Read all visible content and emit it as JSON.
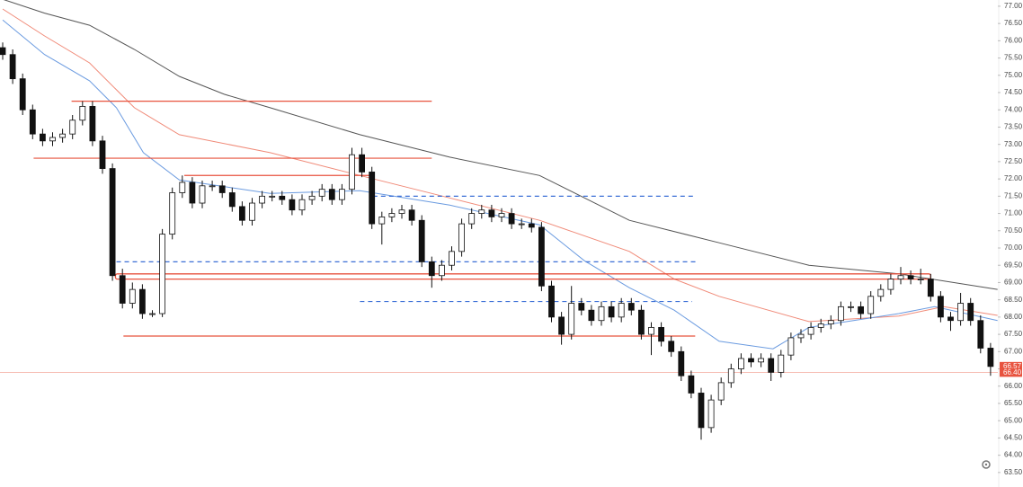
{
  "chart_data": {
    "type": "candlestick",
    "up_color": "#ffffff",
    "down_color": "#111111",
    "wick_color": "#111111",
    "ylim": [
      63.08,
      77.18
    ],
    "yticks": [
      {
        "value": 63.5,
        "label": "63.50"
      },
      {
        "value": 64,
        "label": "64.00"
      },
      {
        "value": 64.5,
        "label": "64.50"
      },
      {
        "value": 65,
        "label": "65.00"
      },
      {
        "value": 65.5,
        "label": "65.50"
      },
      {
        "value": 66,
        "label": "66.00"
      },
      {
        "value": 66.5,
        "label": "66.50"
      },
      {
        "value": 67,
        "label": "67.00"
      },
      {
        "value": 67.5,
        "label": "67.50"
      },
      {
        "value": 68,
        "label": "68.00"
      },
      {
        "value": 68.5,
        "label": "68.50"
      },
      {
        "value": 69,
        "label": "69.00"
      },
      {
        "value": 69.5,
        "label": "69.50"
      },
      {
        "value": 70,
        "label": "70.00"
      },
      {
        "value": 70.5,
        "label": "70.50"
      },
      {
        "value": 71,
        "label": "71.00"
      },
      {
        "value": 71.5,
        "label": "71.50"
      },
      {
        "value": 72,
        "label": "72.00"
      },
      {
        "value": 72.5,
        "label": "72.50"
      },
      {
        "value": 73,
        "label": "73.00"
      },
      {
        "value": 73.5,
        "label": "73.50"
      },
      {
        "value": 74,
        "label": "74.00"
      },
      {
        "value": 74.5,
        "label": "74.50"
      },
      {
        "value": 75,
        "label": "75.00"
      },
      {
        "value": 75.5,
        "label": "75.50"
      },
      {
        "value": 76,
        "label": "76.00"
      },
      {
        "value": 76.5,
        "label": "76.50"
      },
      {
        "value": 77,
        "label": "77.00"
      }
    ],
    "open": [
      75.8,
      75.6,
      74.9,
      74.0,
      73.3,
      73.1,
      73.2,
      73.3,
      73.7,
      74.1,
      73.1,
      72.3,
      69.2,
      68.4,
      68.8,
      68.1,
      68.1,
      70.4,
      71.6,
      71.9,
      71.3,
      71.8,
      71.8,
      71.6,
      71.2,
      70.8,
      71.3,
      71.5,
      71.5,
      71.4,
      71.1,
      71.4,
      71.5,
      71.7,
      71.4,
      71.7,
      72.7,
      72.2,
      70.7,
      70.9,
      71.0,
      71.1,
      70.8,
      69.6,
      69.2,
      69.5,
      69.9,
      70.7,
      71.0,
      71.1,
      70.9,
      71.0,
      70.7,
      70.7,
      70.6,
      68.9,
      68.0,
      67.5,
      68.4,
      68.2,
      67.9,
      68.3,
      68.0,
      68.4,
      68.2,
      67.5,
      67.7,
      67.3,
      67.0,
      66.3,
      65.8,
      64.8,
      65.6,
      66.1,
      66.5,
      66.8,
      66.7,
      66.8,
      66.4,
      66.9,
      67.4,
      67.5,
      67.7,
      67.8,
      67.9,
      68.3,
      68.3,
      68.1,
      68.6,
      68.8,
      69.1,
      69.2,
      69.1,
      69.1,
      68.6,
      68.0,
      67.9,
      68.4,
      67.9,
      67.1
    ],
    "high": [
      75.95,
      75.75,
      75.05,
      74.15,
      73.45,
      73.35,
      73.45,
      73.85,
      74.25,
      74.25,
      73.25,
      72.45,
      69.4,
      69.0,
      68.95,
      68.2,
      70.55,
      71.75,
      72.1,
      72.05,
      71.95,
      71.95,
      71.95,
      71.75,
      71.35,
      71.45,
      71.65,
      71.65,
      71.65,
      71.55,
      71.55,
      71.65,
      71.85,
      71.85,
      71.85,
      72.9,
      72.9,
      72.35,
      71.05,
      71.15,
      71.25,
      71.25,
      70.95,
      69.75,
      69.65,
      70.05,
      70.85,
      71.15,
      71.25,
      71.25,
      71.15,
      71.15,
      70.85,
      70.85,
      70.75,
      69.05,
      68.15,
      68.9,
      68.55,
      68.35,
      68.45,
      68.45,
      68.55,
      68.55,
      68.35,
      67.85,
      67.85,
      67.45,
      67.15,
      66.45,
      65.95,
      65.75,
      66.25,
      66.65,
      66.95,
      66.95,
      66.95,
      66.95,
      67.05,
      67.55,
      67.65,
      67.85,
      67.95,
      68.05,
      68.45,
      68.45,
      68.45,
      68.75,
      68.95,
      69.25,
      69.45,
      69.35,
      69.4,
      69.25,
      68.75,
      68.15,
      68.7,
      68.55,
      68.05,
      67.25
    ],
    "low": [
      75.45,
      74.75,
      73.85,
      73.15,
      72.95,
      72.95,
      73.05,
      73.15,
      73.55,
      72.95,
      72.15,
      69.05,
      68.25,
      68.25,
      67.95,
      68.0,
      68.0,
      70.25,
      71.45,
      71.15,
      71.15,
      71.65,
      71.45,
      71.05,
      70.65,
      70.65,
      71.15,
      71.35,
      71.25,
      70.95,
      70.95,
      71.25,
      71.35,
      71.25,
      71.25,
      71.55,
      72.05,
      70.55,
      70.1,
      70.75,
      70.85,
      70.65,
      69.45,
      68.85,
      69.05,
      69.35,
      69.75,
      70.55,
      70.85,
      70.75,
      70.75,
      70.55,
      70.55,
      70.45,
      68.75,
      67.85,
      67.2,
      67.35,
      68.05,
      67.75,
      67.75,
      67.85,
      67.85,
      68.05,
      67.35,
      66.9,
      67.15,
      66.85,
      66.15,
      65.65,
      64.45,
      64.65,
      65.45,
      65.95,
      66.35,
      66.55,
      66.55,
      66.15,
      66.25,
      66.75,
      67.25,
      67.35,
      67.55,
      67.65,
      67.75,
      68.15,
      67.95,
      67.95,
      68.45,
      68.65,
      68.95,
      68.95,
      68.95,
      68.45,
      67.85,
      67.6,
      67.75,
      67.75,
      66.95,
      66.3
    ],
    "close": [
      75.6,
      74.9,
      74.0,
      73.3,
      73.1,
      73.2,
      73.3,
      73.7,
      74.1,
      73.1,
      72.3,
      69.2,
      68.4,
      68.8,
      68.1,
      68.1,
      70.4,
      71.6,
      71.9,
      71.3,
      71.8,
      71.8,
      71.6,
      71.2,
      70.8,
      71.3,
      71.5,
      71.5,
      71.4,
      71.1,
      71.4,
      71.5,
      71.7,
      71.4,
      71.7,
      72.7,
      72.2,
      70.7,
      70.9,
      71.0,
      71.1,
      70.8,
      69.6,
      69.2,
      69.5,
      69.9,
      70.7,
      71.0,
      71.1,
      70.9,
      71.0,
      70.7,
      70.7,
      70.6,
      68.9,
      68.0,
      67.5,
      68.4,
      68.2,
      67.9,
      68.3,
      68.0,
      68.4,
      68.2,
      67.5,
      67.7,
      67.3,
      67.0,
      66.3,
      65.8,
      64.8,
      65.6,
      66.1,
      66.5,
      66.8,
      66.7,
      66.8,
      66.4,
      66.9,
      67.4,
      67.5,
      67.7,
      67.8,
      67.9,
      68.3,
      68.3,
      68.1,
      68.6,
      68.8,
      69.1,
      69.2,
      69.1,
      69.1,
      68.6,
      68.0,
      67.9,
      68.4,
      67.9,
      67.1,
      66.57
    ],
    "lines": [
      {
        "color": "#555555",
        "x": [
          0,
          4.2,
          8.7,
          13.2,
          17.7,
          22.2,
          26.8,
          35.8,
          44.8,
          53.8,
          62.8,
          71.8,
          80.8,
          89.8,
          99.7
        ],
        "values": [
          77.2,
          76.8,
          76.45,
          75.75,
          74.97,
          74.45,
          74.06,
          73.28,
          72.63,
          72.1,
          70.8,
          70.15,
          69.5,
          69.25,
          68.8
        ]
      },
      {
        "color": "#f08a78",
        "x": [
          0,
          4.2,
          8.7,
          11.4,
          13.2,
          17.7,
          26.8,
          35.8,
          44.8,
          53.8,
          62.8,
          67.3,
          71.8,
          80.8,
          89.8,
          94.3,
          99.7
        ],
        "values": [
          76.92,
          76.14,
          75.36,
          74.58,
          74.06,
          73.28,
          72.76,
          72.1,
          71.45,
          70.8,
          69.9,
          69.1,
          68.6,
          67.87,
          68.03,
          68.3,
          68.05
        ]
      },
      {
        "color": "#6b9be0",
        "x": [
          0,
          4.2,
          8.7,
          11.4,
          14.1,
          17.7,
          26.8,
          35.8,
          44.8,
          53.8,
          58.3,
          62.8,
          67.3,
          71.8,
          77.2,
          80.8,
          89.8,
          93.4,
          99.7
        ],
        "values": [
          76.6,
          75.6,
          74.84,
          74.06,
          72.76,
          71.97,
          71.58,
          71.66,
          71.24,
          70.67,
          69.63,
          68.85,
          68.2,
          67.3,
          67.08,
          67.7,
          68.1,
          68.3,
          67.9
        ]
      }
    ],
    "levels": [
      {
        "value": 74.25,
        "x": [
          6.9,
          43
        ],
        "color": "#e8533f",
        "dashed": false
      },
      {
        "value": 72.6,
        "x": [
          3.1,
          43
        ],
        "color": "#e8533f",
        "dashed": false
      },
      {
        "value": 72.1,
        "x": [
          18.2,
          37.1
        ],
        "color": "#e8533f",
        "dashed": false
      },
      {
        "value": 67.45,
        "x": [
          12.1,
          69.4
        ],
        "color": "#e8533f",
        "dashed": false
      },
      {
        "value": 71.5,
        "x": [
          37.1,
          69.5
        ],
        "color": "#3b6fd6",
        "dashed": true
      },
      {
        "value": 69.6,
        "x": [
          11.4,
          69.5
        ],
        "color": "#3b6fd6",
        "dashed": true
      },
      {
        "value": 68.45,
        "x": [
          35.8,
          69.1
        ],
        "color": "#3b6fd6",
        "dashed": true
      }
    ],
    "zones": [
      {
        "values": [
          69.1,
          69.25
        ],
        "x": [
          11.3,
          93
        ],
        "color": "#e8533f"
      }
    ],
    "last_price": 66.57,
    "last_price_color": "#e8533f",
    "price_line": {
      "value": 66.4,
      "label": "66.40"
    },
    "price_line_color": "#f4a89c"
  }
}
